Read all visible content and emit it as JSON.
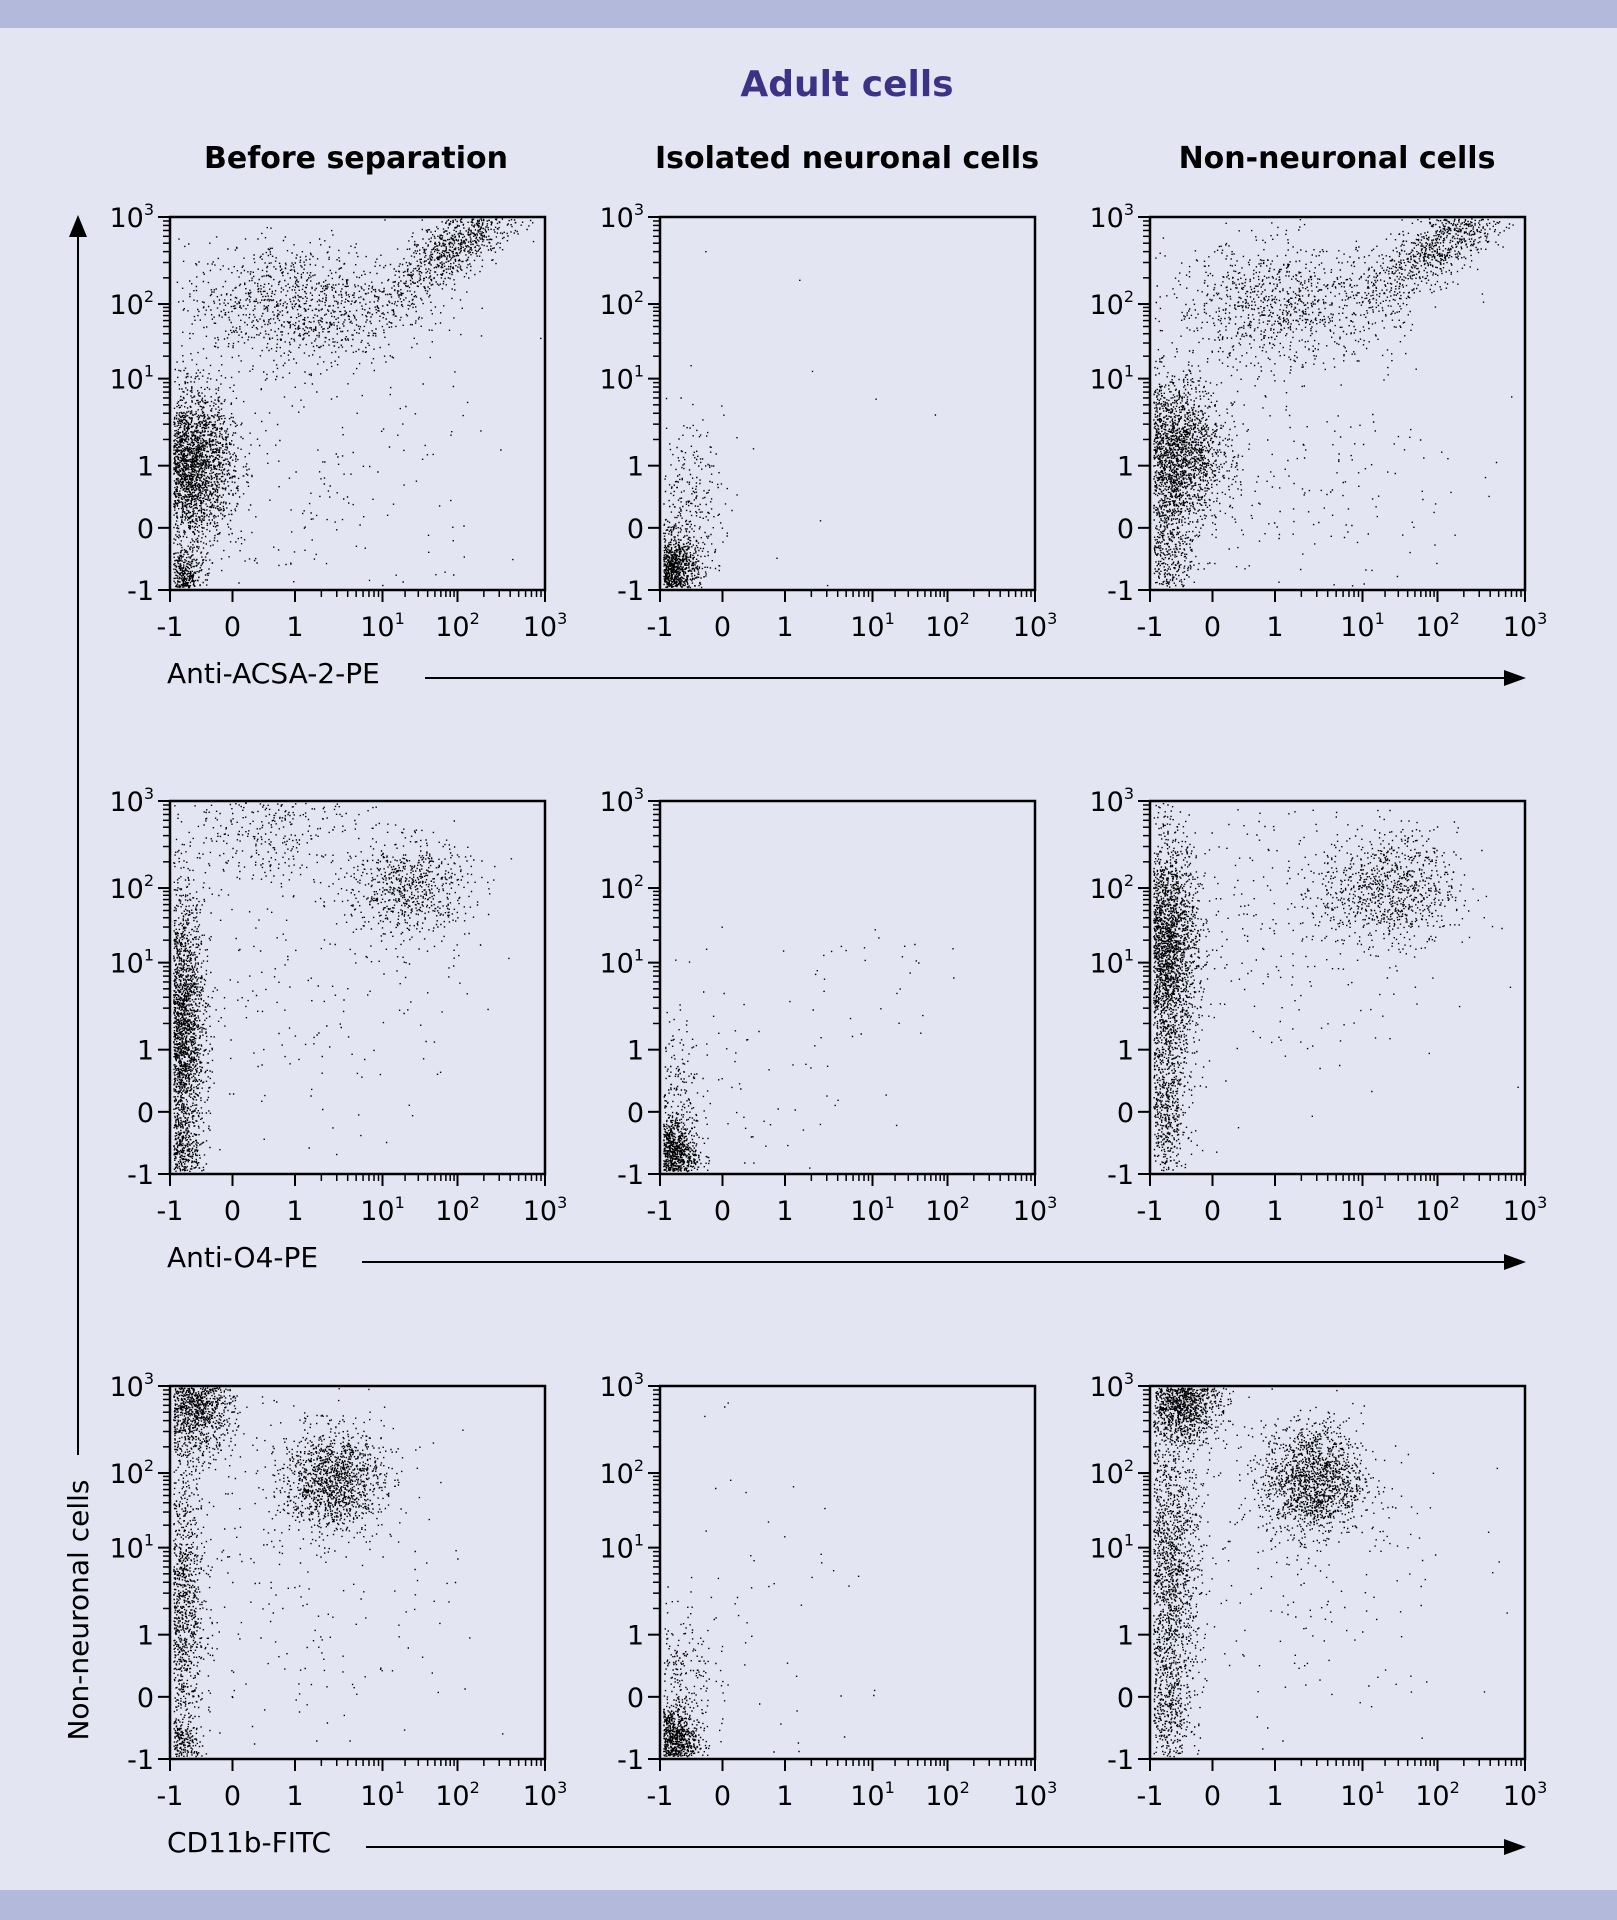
{
  "colors": {
    "band": "#b3b9da",
    "background": "#e4e5f2",
    "title": "#3c3387",
    "points": "#000000"
  },
  "chart_data": {
    "type": "scatter",
    "title": "Adult cells",
    "columns": [
      "Before separation",
      "Isolated neuronal cells",
      "Non-neuronal cells"
    ],
    "ylabel": "Non-neuronal cells",
    "row_xlabels": [
      "Anti-ACSA-2-PE",
      "Anti-O4-PE",
      "CD11b-FITC"
    ],
    "x_ticks": [
      {
        "base": "-1",
        "exp": ""
      },
      {
        "base": "0",
        "exp": ""
      },
      {
        "base": "1",
        "exp": ""
      },
      {
        "base": "10",
        "exp": "1"
      },
      {
        "base": "10",
        "exp": "2"
      },
      {
        "base": "10",
        "exp": "3"
      }
    ],
    "y_ticks": [
      {
        "base": "-1",
        "exp": ""
      },
      {
        "base": "0",
        "exp": ""
      },
      {
        "base": "1",
        "exp": ""
      },
      {
        "base": "10",
        "exp": "1"
      },
      {
        "base": "10",
        "exp": "2"
      },
      {
        "base": "10",
        "exp": "3"
      }
    ],
    "scale": "biexponential",
    "range": [
      -1,
      1000
    ],
    "panels": [
      {
        "row": 0,
        "col": 0,
        "clusters": [
          {
            "cx": 0.2,
            "cy": 0.2,
            "sx": 0.16,
            "sy": 0.25,
            "n": 500
          },
          {
            "cx": 0.3,
            "cy": 2.0,
            "sx": 0.35,
            "sy": 0.6,
            "n": 2800
          },
          {
            "cx": 2.0,
            "cy": 4.6,
            "sx": 0.9,
            "sy": 0.5,
            "n": 1100
          },
          {
            "cx": 4.7,
            "cy": 5.7,
            "sx": 0.25,
            "sy": 0.25,
            "n": 1200,
            "lx": 1.2,
            "ly": 1.0
          },
          {
            "cx": 2.2,
            "cy": 1.8,
            "sx": 1.5,
            "sy": 1.3,
            "n": 250
          }
        ]
      },
      {
        "row": 0,
        "col": 1,
        "clusters": [
          {
            "cx": 0.15,
            "cy": 0.3,
            "sx": 0.22,
            "sy": 0.3,
            "n": 1300
          },
          {
            "cx": 0.4,
            "cy": 1.3,
            "sx": 0.3,
            "sy": 0.7,
            "n": 350
          },
          {
            "cx": 1.8,
            "cy": 2.8,
            "sx": 1.4,
            "sy": 1.5,
            "n": 12
          }
        ]
      },
      {
        "row": 0,
        "col": 2,
        "clusters": [
          {
            "cx": 0.2,
            "cy": 0.6,
            "sx": 0.25,
            "sy": 0.6,
            "n": 600
          },
          {
            "cx": 0.35,
            "cy": 2.2,
            "sx": 0.4,
            "sy": 0.6,
            "n": 2400
          },
          {
            "cx": 2.1,
            "cy": 4.6,
            "sx": 0.9,
            "sy": 0.5,
            "n": 1000
          },
          {
            "cx": 4.8,
            "cy": 5.7,
            "sx": 0.25,
            "sy": 0.25,
            "n": 1200,
            "lx": 1.2,
            "ly": 1.0
          },
          {
            "cx": 2.2,
            "cy": 1.8,
            "sx": 1.5,
            "sy": 1.3,
            "n": 250
          }
        ]
      },
      {
        "row": 1,
        "col": 0,
        "clusters": [
          {
            "cx": 0.15,
            "cy": 0.3,
            "sx": 0.15,
            "sy": 0.3,
            "n": 300
          },
          {
            "cx": 0.15,
            "cy": 2.3,
            "sx": 0.2,
            "sy": 1.1,
            "n": 2800
          },
          {
            "cx": 1.5,
            "cy": 5.7,
            "sx": 0.7,
            "sy": 0.5,
            "n": 400
          },
          {
            "cx": 3.8,
            "cy": 4.6,
            "sx": 0.5,
            "sy": 0.4,
            "n": 700
          },
          {
            "cx": 2.2,
            "cy": 3.5,
            "sx": 1.3,
            "sy": 1.4,
            "n": 250
          }
        ]
      },
      {
        "row": 1,
        "col": 1,
        "clusters": [
          {
            "cx": 0.15,
            "cy": 0.3,
            "sx": 0.22,
            "sy": 0.28,
            "n": 1100
          },
          {
            "cx": 0.15,
            "cy": 1.3,
            "sx": 0.25,
            "sy": 0.6,
            "n": 300
          },
          {
            "cx": 3.2,
            "cy": 3.2,
            "sx": 0.6,
            "sy": 0.5,
            "n": 30
          },
          {
            "cx": 1.2,
            "cy": 1.5,
            "sx": 1.0,
            "sy": 1.2,
            "n": 80
          }
        ]
      },
      {
        "row": 1,
        "col": 2,
        "clusters": [
          {
            "cx": 0.2,
            "cy": 1.0,
            "sx": 0.2,
            "sy": 0.7,
            "n": 700
          },
          {
            "cx": 0.25,
            "cy": 3.6,
            "sx": 0.25,
            "sy": 0.9,
            "n": 2700
          },
          {
            "cx": 3.8,
            "cy": 4.6,
            "sx": 0.55,
            "sy": 0.45,
            "n": 900
          },
          {
            "cx": 2.2,
            "cy": 4.0,
            "sx": 1.3,
            "sy": 1.2,
            "n": 300
          }
        ]
      },
      {
        "row": 2,
        "col": 0,
        "clusters": [
          {
            "cx": 0.15,
            "cy": 0.2,
            "sx": 0.15,
            "sy": 0.25,
            "n": 300
          },
          {
            "cx": 0.15,
            "cy": 2.5,
            "sx": 0.2,
            "sy": 1.2,
            "n": 1400
          },
          {
            "cx": 0.4,
            "cy": 5.7,
            "sx": 0.3,
            "sy": 0.4,
            "n": 1300
          },
          {
            "cx": 2.6,
            "cy": 4.5,
            "sx": 0.4,
            "sy": 0.4,
            "n": 1300
          },
          {
            "cx": 2.0,
            "cy": 3.2,
            "sx": 1.4,
            "sy": 1.6,
            "n": 300
          }
        ]
      },
      {
        "row": 2,
        "col": 1,
        "clusters": [
          {
            "cx": 0.15,
            "cy": 0.3,
            "sx": 0.22,
            "sy": 0.28,
            "n": 1100
          },
          {
            "cx": 0.25,
            "cy": 1.3,
            "sx": 0.3,
            "sy": 0.6,
            "n": 300
          },
          {
            "cx": 1.5,
            "cy": 1.8,
            "sx": 1.2,
            "sy": 1.5,
            "n": 70
          }
        ]
      },
      {
        "row": 2,
        "col": 2,
        "clusters": [
          {
            "cx": 0.25,
            "cy": 0.8,
            "sx": 0.2,
            "sy": 0.6,
            "n": 400
          },
          {
            "cx": 0.3,
            "cy": 3.0,
            "sx": 0.25,
            "sy": 1.2,
            "n": 1600
          },
          {
            "cx": 0.5,
            "cy": 5.8,
            "sx": 0.3,
            "sy": 0.35,
            "n": 1400
          },
          {
            "cx": 2.6,
            "cy": 4.5,
            "sx": 0.4,
            "sy": 0.45,
            "n": 1500
          },
          {
            "cx": 2.1,
            "cy": 3.3,
            "sx": 1.4,
            "sy": 1.6,
            "n": 300
          }
        ]
      }
    ]
  }
}
